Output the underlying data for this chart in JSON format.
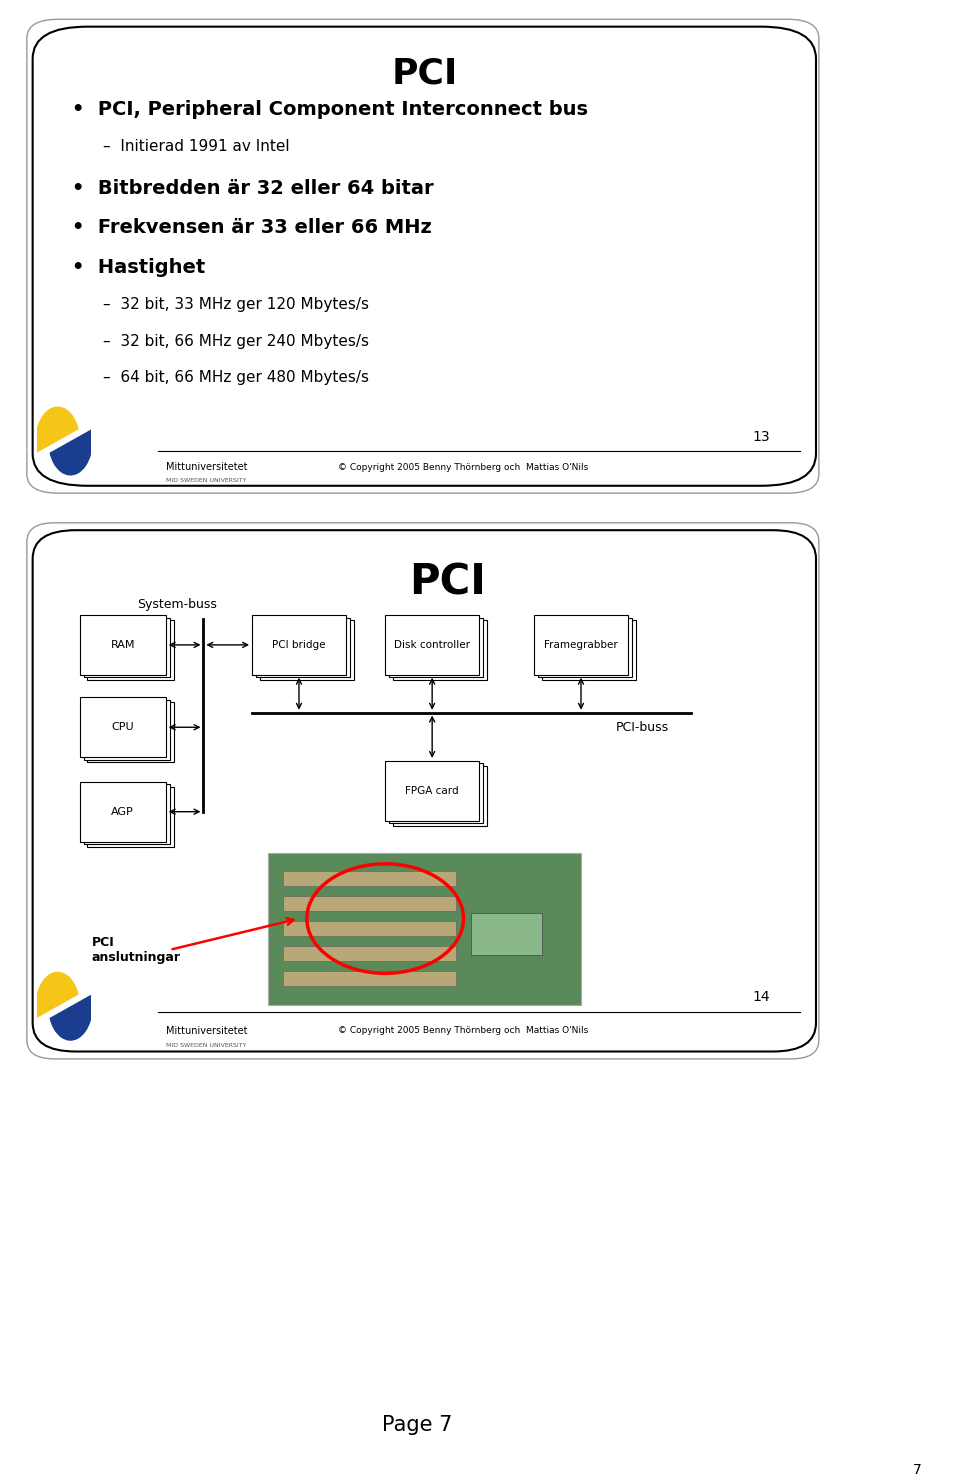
{
  "page_bg": "#ffffff",
  "slide1": {
    "title": "PCI",
    "footer_text": "© Copyright 2005 Benny Thörnberg och  Mattias O'Nils",
    "slide_number": "13",
    "university": "Mittuniversitetet",
    "sub_university": "MID SWEDEN UNIVERSITY",
    "bullets": [
      {
        "level": 1,
        "text": "PCI, Peripheral Component Interconnect bus",
        "bold": true,
        "fs": 14,
        "indent": 0.05,
        "bullet": "•"
      },
      {
        "level": 2,
        "text": "Initierad 1991 av Intel",
        "bold": false,
        "fs": 11,
        "indent": 0.09,
        "bullet": "–"
      },
      {
        "level": 1,
        "text": "Bitbredden är 32 eller 64 bitar",
        "bold": true,
        "fs": 14,
        "indent": 0.05,
        "bullet": "•"
      },
      {
        "level": 1,
        "text": "Frekvensen är 33 eller 66 MHz",
        "bold": true,
        "fs": 14,
        "indent": 0.05,
        "bullet": "•"
      },
      {
        "level": 1,
        "text": "Hastighet",
        "bold": true,
        "fs": 14,
        "indent": 0.05,
        "bullet": "•"
      },
      {
        "level": 2,
        "text": "32 bit, 33 MHz ger 120 Mbytes/s",
        "bold": false,
        "fs": 11,
        "indent": 0.09,
        "bullet": "–"
      },
      {
        "level": 2,
        "text": "32 bit, 66 MHz ger 240 Mbytes/s",
        "bold": false,
        "fs": 11,
        "indent": 0.09,
        "bullet": "–"
      },
      {
        "level": 2,
        "text": "64 bit, 66 MHz ger 480 Mbytes/s",
        "bold": false,
        "fs": 11,
        "indent": 0.09,
        "bullet": "–"
      }
    ]
  },
  "slide2": {
    "title": "PCI",
    "system_buss_label": "System-buss",
    "pci_buss_label": "PCI-buss",
    "pci_anslutningar": "PCI\nanslutningar",
    "footer_text": "© Copyright 2005 Benny Thörnberg och  Mattias O'Nils",
    "slide_number": "14",
    "university": "Mittuniversitetet",
    "sub_university": "MID SWEDEN UNIVERSITY"
  },
  "page_number": "7"
}
